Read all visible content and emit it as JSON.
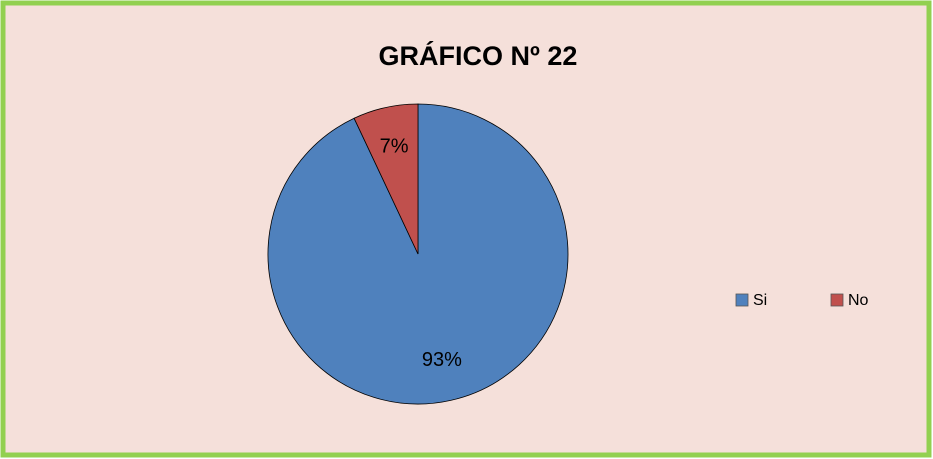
{
  "chart_data": {
    "type": "pie",
    "title": "GRÁFICO Nº 22",
    "categories": [
      "Si",
      "No"
    ],
    "values": [
      93,
      7
    ],
    "value_labels": [
      "93%",
      "7%"
    ],
    "colors": [
      "#4f81bd",
      "#c0504d"
    ],
    "legend": "right"
  }
}
